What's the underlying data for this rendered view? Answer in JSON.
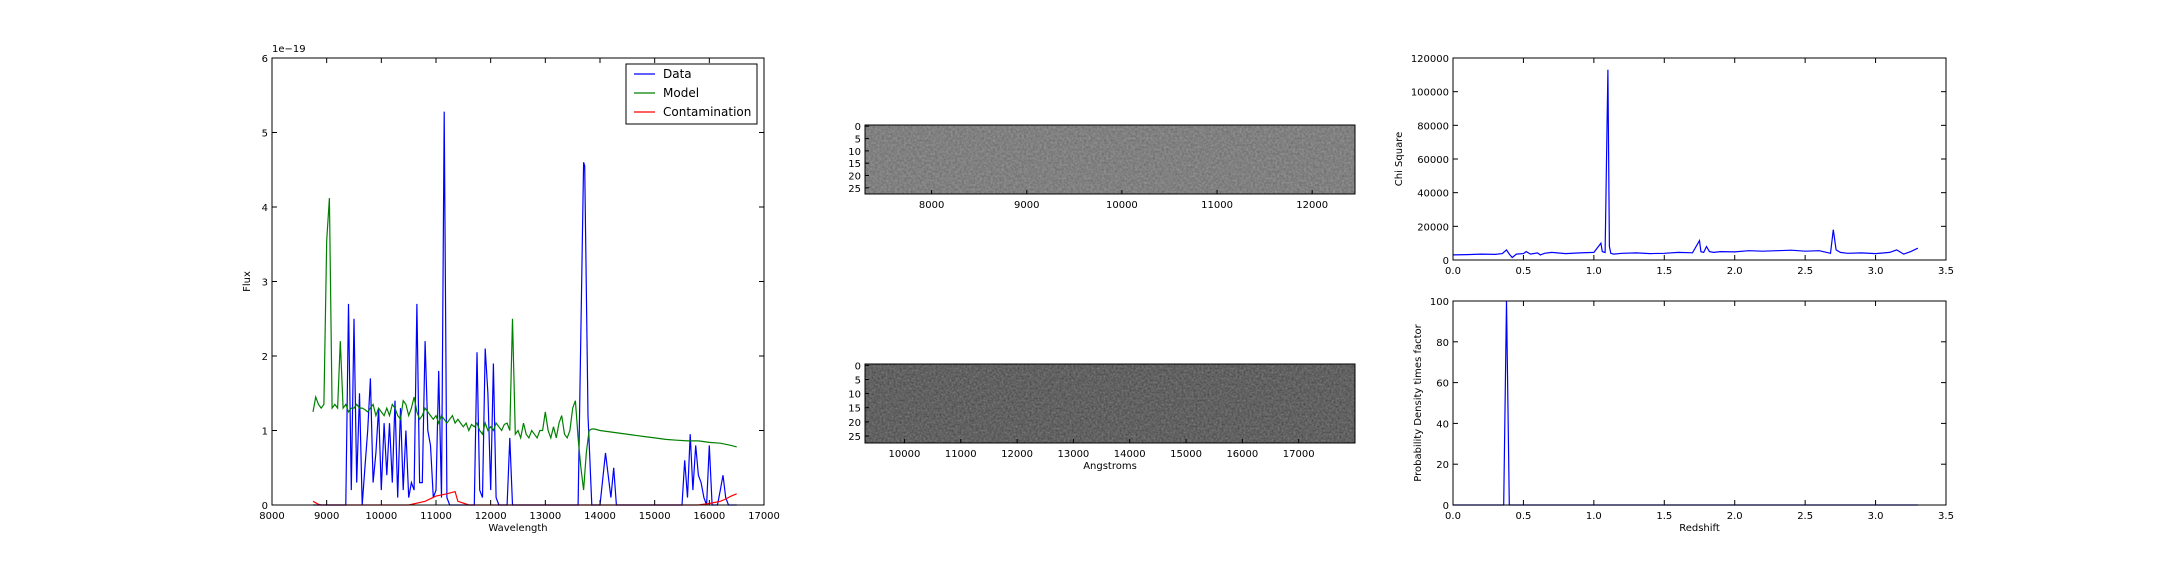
{
  "chart_data": [
    {
      "id": "spectrum",
      "type": "line",
      "xlabel": "Wavelength",
      "ylabel": "Flux",
      "offset_label": "1e−19",
      "xlim": [
        8000,
        17000
      ],
      "ylim": [
        0,
        6
      ],
      "xticks": [
        "8000",
        "9000",
        "10000",
        "11000",
        "12000",
        "13000",
        "14000",
        "15000",
        "16000",
        "17000"
      ],
      "yticks": [
        "0",
        "1",
        "2",
        "3",
        "4",
        "5",
        "6"
      ],
      "legend_position": "top-right",
      "series": [
        {
          "name": "Data",
          "color": "#0000ff",
          "x": [
            8750,
            8800,
            8850,
            8900,
            8950,
            9000,
            9050,
            9100,
            9150,
            9200,
            9250,
            9300,
            9350,
            9400,
            9450,
            9500,
            9550,
            9600,
            9650,
            9700,
            9750,
            9800,
            9850,
            9900,
            9950,
            10000,
            10050,
            10100,
            10150,
            10200,
            10250,
            10300,
            10350,
            10400,
            10450,
            10500,
            10550,
            10600,
            10650,
            10700,
            10750,
            10800,
            10850,
            10900,
            10950,
            11000,
            11050,
            11100,
            11150,
            11200,
            11250,
            11300,
            11350,
            11400,
            11450,
            11500,
            11550,
            11600,
            11650,
            11700,
            11750,
            11800,
            11850,
            11900,
            11950,
            12000,
            12050,
            12100,
            12150,
            12200,
            12250,
            12300,
            12350,
            12400,
            12450,
            12500,
            12550,
            12600,
            12650,
            12700,
            13000,
            13300,
            13500,
            13600,
            13700,
            13720,
            13780,
            13850,
            13900,
            13950,
            14000,
            14100,
            14200,
            14250,
            14300,
            14350,
            14400,
            14450,
            14500,
            15000,
            15500,
            15550,
            15600,
            15650,
            15700,
            15750,
            15800,
            15850,
            15900,
            15950,
            16000,
            16050,
            16100,
            16150,
            16200,
            16250,
            16300,
            16350,
            16400,
            16450,
            16500
          ],
          "y": [
            0,
            0,
            0,
            0,
            0,
            0,
            0,
            0,
            0,
            0,
            0,
            0,
            0,
            2.7,
            0.2,
            2.5,
            0.3,
            1.5,
            0,
            0.5,
            1.0,
            1.7,
            0.3,
            0.7,
            1.3,
            0.2,
            1.1,
            0.4,
            1.1,
            0.3,
            1.4,
            0.1,
            1.3,
            0.2,
            1.0,
            0.1,
            0.3,
            0.2,
            2.7,
            0.3,
            0.3,
            2.2,
            1.0,
            0.8,
            0.1,
            0.2,
            1.8,
            0.1,
            5.28,
            0.1,
            0,
            0,
            0,
            0,
            0,
            0,
            0,
            0,
            0,
            0,
            2.05,
            0.2,
            0.1,
            2.1,
            1.5,
            0.2,
            1.9,
            0.1,
            0,
            0,
            0,
            0,
            0.9,
            0,
            0,
            0,
            0,
            0,
            0,
            0,
            0,
            0,
            0,
            0,
            4.6,
            4.55,
            1.2,
            0,
            0,
            0,
            0,
            0.7,
            0.1,
            0.5,
            0,
            0,
            0,
            0,
            0,
            0,
            0,
            0.6,
            0.1,
            0.95,
            0.2,
            0.8,
            0.4,
            0.3,
            0.1,
            0,
            0.8,
            0,
            0,
            0,
            0.2,
            0.4,
            0.1,
            0,
            0,
            0,
            0
          ]
        },
        {
          "name": "Model",
          "color": "#008000",
          "x": [
            8750,
            8800,
            8850,
            8900,
            8950,
            9000,
            9050,
            9100,
            9150,
            9200,
            9250,
            9300,
            9350,
            9400,
            9450,
            9500,
            9550,
            9600,
            9650,
            9700,
            9750,
            9800,
            9850,
            9900,
            9950,
            10000,
            10050,
            10100,
            10150,
            10200,
            10250,
            10300,
            10350,
            10400,
            10450,
            10500,
            10550,
            10600,
            10650,
            10700,
            10750,
            10800,
            10850,
            10900,
            10950,
            11000,
            11050,
            11100,
            11150,
            11200,
            11250,
            11300,
            11350,
            11400,
            11450,
            11500,
            11550,
            11600,
            11650,
            11700,
            11750,
            11800,
            11850,
            11900,
            11950,
            12000,
            12050,
            12100,
            12150,
            12200,
            12250,
            12300,
            12350,
            12400,
            12450,
            12500,
            12550,
            12600,
            12650,
            12700,
            12750,
            12800,
            12850,
            12900,
            12950,
            13000,
            13050,
            13100,
            13150,
            13200,
            13250,
            13300,
            13350,
            13400,
            13450,
            13500,
            13550,
            13600,
            13650,
            13700,
            13750,
            13800,
            13850,
            13900,
            14000,
            14200,
            14400,
            14600,
            14800,
            15000,
            15200,
            15400,
            15600,
            15800,
            16000,
            16200,
            16400,
            16500
          ],
          "y": [
            1.25,
            1.45,
            1.35,
            1.3,
            1.35,
            3.55,
            4.12,
            1.3,
            1.35,
            1.3,
            2.2,
            1.3,
            1.35,
            1.25,
            1.3,
            1.3,
            1.35,
            1.3,
            1.3,
            1.28,
            1.25,
            1.3,
            1.35,
            1.2,
            1.3,
            1.25,
            1.2,
            1.3,
            1.2,
            1.35,
            1.3,
            1.2,
            1.15,
            1.4,
            1.35,
            1.2,
            1.3,
            1.45,
            1.25,
            1.15,
            1.2,
            1.3,
            1.25,
            1.2,
            1.15,
            1.2,
            1.1,
            1.2,
            1.15,
            1.1,
            1.15,
            1.2,
            1.1,
            1.15,
            1.1,
            1.05,
            1.1,
            1.0,
            1.08,
            1.05,
            1.1,
            1.0,
            0.95,
            1.1,
            1.0,
            1.05,
            1.0,
            1.1,
            1.05,
            1.0,
            1.08,
            1.1,
            1.0,
            2.5,
            0.95,
            1.0,
            0.9,
            1.1,
            0.95,
            0.9,
            1.0,
            0.95,
            0.9,
            1.0,
            1.0,
            1.25,
            1.0,
            0.9,
            1.05,
            0.9,
            1.1,
            1.2,
            0.95,
            0.9,
            1.0,
            1.3,
            1.4,
            0.9,
            0.5,
            0.2,
            0.7,
            1.0,
            1.02,
            1.02,
            1.0,
            0.98,
            0.96,
            0.94,
            0.92,
            0.9,
            0.88,
            0.87,
            0.86,
            0.86,
            0.84,
            0.83,
            0.8,
            0.78
          ]
        },
        {
          "name": "Contamination",
          "color": "#ff0000",
          "x": [
            8750,
            8800,
            8850,
            8900,
            9000,
            9500,
            10000,
            10500,
            10800,
            11000,
            11200,
            11350,
            11400,
            11600,
            12000,
            13000,
            14000,
            15000,
            15800,
            16000,
            16200,
            16300,
            16400,
            16500
          ],
          "y": [
            0.05,
            0.03,
            0.01,
            0,
            0,
            0,
            0,
            0,
            0.05,
            0.12,
            0.15,
            0.18,
            0.05,
            0,
            0,
            0,
            0,
            0,
            0,
            0.02,
            0.05,
            0.08,
            0.12,
            0.15
          ]
        }
      ]
    },
    {
      "id": "image1",
      "type": "heatmap",
      "xlim": [
        7300,
        12450
      ],
      "ylim": [
        28,
        0
      ],
      "xticks": [
        "8000",
        "9000",
        "10000",
        "11000",
        "12000"
      ],
      "yticks": [
        "0",
        "5",
        "10",
        "15",
        "20",
        "25"
      ],
      "xlabel": ""
    },
    {
      "id": "image2",
      "type": "heatmap",
      "xlim": [
        9300,
        18000
      ],
      "ylim": [
        28,
        0
      ],
      "xticks": [
        "10000",
        "11000",
        "12000",
        "13000",
        "14000",
        "15000",
        "16000",
        "17000"
      ],
      "yticks": [
        "0",
        "5",
        "10",
        "15",
        "20",
        "25"
      ],
      "xlabel": "Angstroms"
    },
    {
      "id": "chisq",
      "type": "line",
      "xlabel": "",
      "ylabel": "Chi Square",
      "xlim": [
        0,
        3.5
      ],
      "ylim": [
        0,
        120000
      ],
      "xticks": [
        "0.0",
        "0.5",
        "1.0",
        "1.5",
        "2.0",
        "2.5",
        "3.0",
        "3.5"
      ],
      "yticks": [
        "0",
        "20000",
        "40000",
        "60000",
        "80000",
        "100000",
        "120000"
      ],
      "series": [
        {
          "color": "#0000ff",
          "x": [
            0,
            0.1,
            0.2,
            0.3,
            0.35,
            0.38,
            0.4,
            0.42,
            0.45,
            0.5,
            0.52,
            0.55,
            0.6,
            0.62,
            0.65,
            0.7,
            0.8,
            0.9,
            1.0,
            1.05,
            1.06,
            1.08,
            1.1,
            1.11,
            1.12,
            1.14,
            1.2,
            1.3,
            1.4,
            1.5,
            1.6,
            1.7,
            1.75,
            1.76,
            1.78,
            1.8,
            1.82,
            1.85,
            1.9,
            2.0,
            2.1,
            2.2,
            2.3,
            2.4,
            2.5,
            2.6,
            2.68,
            2.7,
            2.72,
            2.75,
            2.8,
            2.9,
            3.0,
            3.1,
            3.15,
            3.2,
            3.25,
            3.3
          ],
          "y": [
            3000,
            3200,
            3500,
            3300,
            3800,
            6000,
            3500,
            1500,
            3500,
            3800,
            5000,
            3500,
            4200,
            3000,
            4000,
            4500,
            3800,
            4200,
            4500,
            10000,
            5000,
            4500,
            113000,
            8000,
            4000,
            3500,
            4000,
            4200,
            3800,
            4000,
            4500,
            4300,
            11500,
            5000,
            4500,
            8000,
            5000,
            4500,
            5000,
            4800,
            5500,
            5200,
            5500,
            5800,
            5200,
            5500,
            4000,
            18000,
            6000,
            4500,
            4000,
            4200,
            3800,
            4500,
            6000,
            3500,
            5000,
            7000
          ]
        }
      ]
    },
    {
      "id": "pdf",
      "type": "line",
      "xlabel": "Redshift",
      "ylabel": "Probability Density times factor",
      "xlim": [
        0,
        3.5
      ],
      "ylim": [
        0,
        100
      ],
      "xticks": [
        "0.0",
        "0.5",
        "1.0",
        "1.5",
        "2.0",
        "2.5",
        "3.0",
        "3.5"
      ],
      "yticks": [
        "0",
        "20",
        "40",
        "60",
        "80",
        "100"
      ],
      "series": [
        {
          "color": "#0000ff",
          "x": [
            0,
            0.36,
            0.37,
            0.38,
            0.39,
            0.4,
            3.3
          ],
          "y": [
            0,
            0,
            50,
            100,
            50,
            0,
            0
          ]
        }
      ]
    }
  ]
}
